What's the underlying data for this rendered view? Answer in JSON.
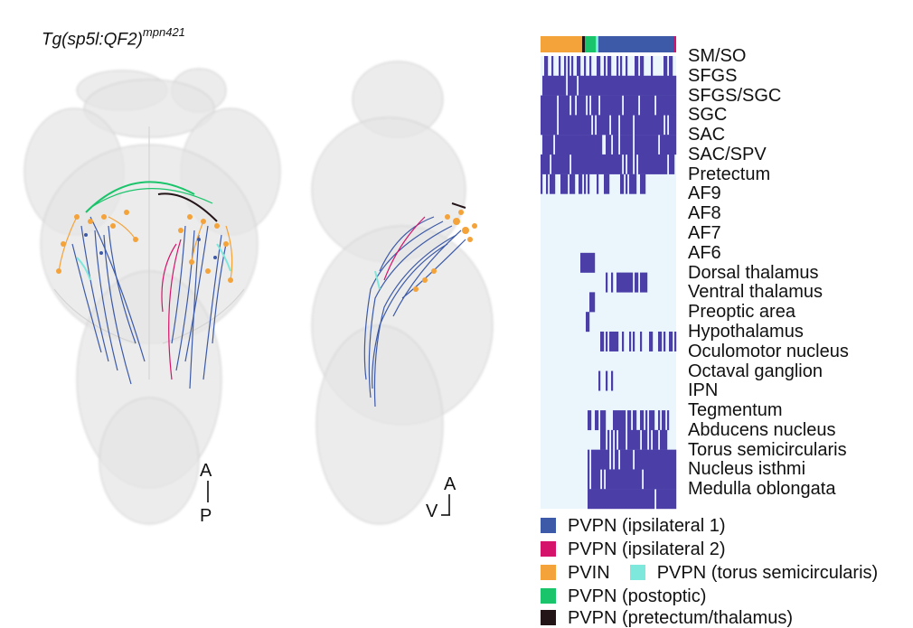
{
  "figure": {
    "title": "Tg(sp5l:QF2)",
    "title_sup": "mpn421",
    "dorsal_axis": {
      "top": "A",
      "bottom": "P"
    },
    "lateral_axis": {
      "top": "A",
      "left": "V"
    }
  },
  "colors": {
    "ipsilateral1": "#3d5aa8",
    "ipsilateral2": "#d6136b",
    "pvin": "#f4a33a",
    "torus": "#7ee8dc",
    "postoptic": "#19c46a",
    "pretectum": "#231418",
    "heat_on": "#4b3fa7",
    "heat_off": "#eaf6fb"
  },
  "heatmap": {
    "regions": [
      "SM/SO",
      "SFGS",
      "SFGS/SGC",
      "SGC",
      "SAC",
      "SAC/SPV",
      "Pretectum",
      "AF9",
      "AF8",
      "AF7",
      "AF6",
      "Dorsal thalamus",
      "Ventral thalamus",
      "Preoptic area",
      "Hypothalamus",
      "Oculomotor nucleus",
      "Octaval ganglion",
      "IPN",
      "Tegmentum",
      "Abducens nucleus",
      "Torus semicircularis",
      "Nucleus isthmi",
      "Medulla oblongata"
    ],
    "cluster_bar": [
      "pvin",
      "pretectum",
      "postoptic",
      "torus",
      "ipsilateral1",
      "ipsilateral2"
    ]
  },
  "legend": [
    {
      "label": "PVPN (ipsilateral 1)",
      "color": "#3d5aa8"
    },
    {
      "label": "PVPN (ipsilateral 2)",
      "color": "#d6136b"
    },
    {
      "label": "PVIN",
      "color": "#f4a33a",
      "label2": "PVPN (torus semicircularis)",
      "color2": "#7ee8dc"
    },
    {
      "label": "PVPN (postoptic)",
      "color": "#19c46a"
    },
    {
      "label": "PVPN (pretectum/thalamus)",
      "color": "#231418"
    }
  ]
}
